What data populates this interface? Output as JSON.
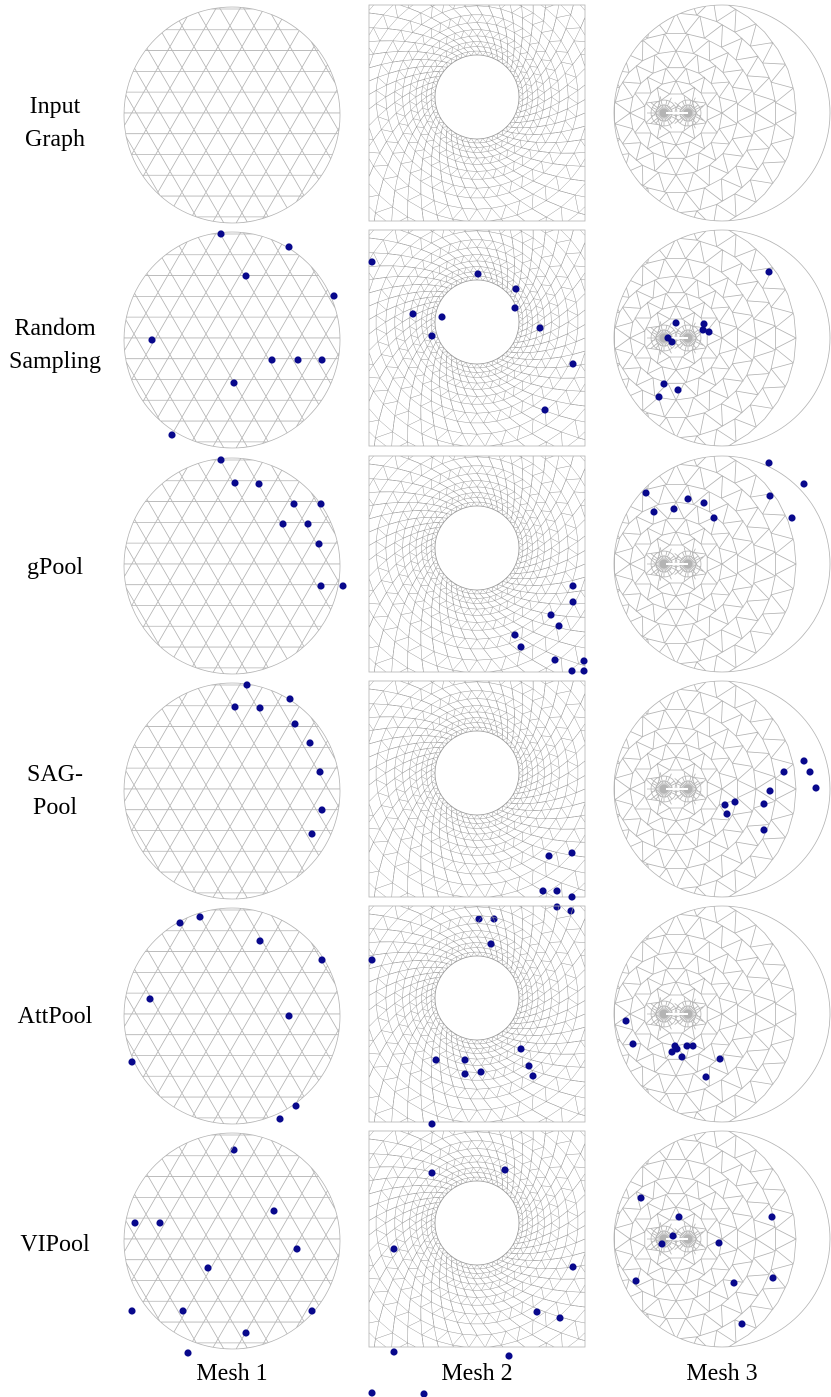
{
  "colors": {
    "node": "#08088c",
    "edge": "#b4b4b4",
    "background": "#ffffff"
  },
  "columns": [
    {
      "label": "Mesh 1",
      "type": "circle"
    },
    {
      "label": "Mesh 2",
      "type": "square-with-hole"
    },
    {
      "label": "Mesh 3",
      "type": "circle-with-crack"
    }
  ],
  "rows": [
    {
      "line1": "Input",
      "line2": "Graph"
    },
    {
      "line1": "Random",
      "line2": "Sampling"
    },
    {
      "line1": "gPool",
      "line2": ""
    },
    {
      "line1": "SAG-",
      "line2": "Pool"
    },
    {
      "line1": "AttPool",
      "line2": ""
    },
    {
      "line1": "VIPool",
      "line2": ""
    }
  ]
}
